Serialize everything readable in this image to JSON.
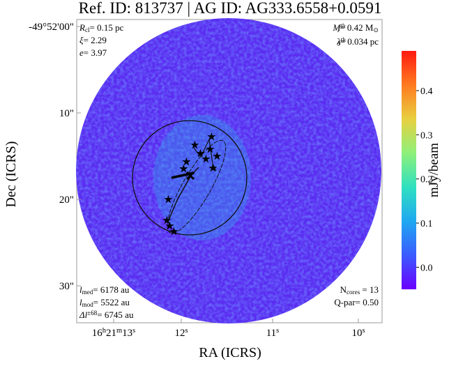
{
  "chart_data": {
    "type": "image",
    "title": "Ref. ID: 813737 | AG ID: AG333.6558+0.0591",
    "xlabel": "RA (ICRS)",
    "ylabel": "Dec (ICRS)",
    "xtick_labels": [
      [
        {
          "text": "16",
          "style": "n"
        },
        {
          "text": "h",
          "style": "sup"
        },
        {
          "text": "21",
          "style": "n"
        },
        {
          "text": "m",
          "style": "sup"
        },
        {
          "text": "13",
          "style": "n"
        },
        {
          "text": "s",
          "style": "sup"
        }
      ],
      [
        {
          "text": "12",
          "style": "n"
        },
        {
          "text": "s",
          "style": "sup"
        }
      ],
      [
        {
          "text": "11",
          "style": "n"
        },
        {
          "text": "s",
          "style": "sup"
        }
      ],
      [
        {
          "text": "10",
          "style": "n"
        },
        {
          "text": "s",
          "style": "sup"
        }
      ]
    ],
    "ytick_labels": [
      "-49°52'00\"",
      "10\"",
      "20\"",
      "30\""
    ],
    "colorbar": {
      "label": "mJy/beam",
      "clim": [
        -0.05,
        0.49
      ],
      "ticks": [
        {
          "value": 0,
          "label": "0.0"
        },
        {
          "value": 0.1,
          "label": "0.1"
        },
        {
          "value": 0.2,
          "label": "0.2"
        },
        {
          "value": 0.3,
          "label": "0.3"
        },
        {
          "value": 0.4,
          "label": "0.4"
        }
      ],
      "colormap": [
        "#6a00ff",
        "#3b5bff",
        "#1fa8f0",
        "#2fe0c0",
        "#8ef07a",
        "#e8d040",
        "#ff7a20",
        "#ff1a10"
      ]
    },
    "annotations": [
      [
        {
          "text": "R",
          "style": "it"
        },
        {
          "text": "cl",
          "style": "sub"
        },
        {
          "text": "= 0.15 pc",
          "style": "n"
        }
      ],
      [
        {
          "text": "ξ",
          "style": "it"
        },
        {
          "text": "= 2.29",
          "style": "n"
        }
      ],
      [
        {
          "text": "e",
          "style": "it"
        },
        {
          "text": "= 3.97",
          "style": "n"
        }
      ],
      [
        {
          "text": "M",
          "style": "it"
        },
        {
          "text": "th",
          "style": "sup"
        },
        {
          "text": "J",
          "style": "sub"
        },
        {
          "text": "= 0.42 M",
          "style": "n"
        },
        {
          "text": "⊙",
          "style": "sub"
        }
      ],
      [
        {
          "text": "λ",
          "style": "it"
        },
        {
          "text": "th",
          "style": "sup"
        },
        {
          "text": "J",
          "style": "sub"
        },
        {
          "text": "= 0.034 pc",
          "style": "n"
        }
      ],
      [
        {
          "text": "l",
          "style": "it"
        },
        {
          "text": "med",
          "style": "sub"
        },
        {
          "text": "= 6178 au",
          "style": "n"
        }
      ],
      [
        {
          "text": "l",
          "style": "it"
        },
        {
          "text": "mod",
          "style": "sub"
        },
        {
          "text": "= 5522 au",
          "style": "n"
        }
      ],
      [
        {
          "text": "Δl",
          "style": "it"
        },
        {
          "text": "±68",
          "style": "sup"
        },
        {
          "text": "= 6745 au",
          "style": "n"
        }
      ],
      [
        {
          "text": "N",
          "style": "n"
        },
        {
          "text": "cores",
          "style": "sub"
        },
        {
          "text": " = 13",
          "style": "n"
        }
      ],
      [
        {
          "text": "Q-par= 0.50",
          "style": "n"
        }
      ]
    ]
  }
}
